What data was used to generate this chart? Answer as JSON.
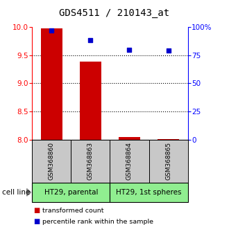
{
  "title": "GDS4511 / 210143_at",
  "samples": [
    "GSM368860",
    "GSM368863",
    "GSM368864",
    "GSM368865"
  ],
  "bar_values": [
    9.97,
    9.38,
    8.05,
    8.01
  ],
  "bar_base": 8.0,
  "percentile_values": [
    97,
    88,
    80,
    79
  ],
  "bar_color": "#cc0000",
  "dot_color": "#0000cc",
  "ylim_left": [
    8.0,
    10.0
  ],
  "ylim_right": [
    0,
    100
  ],
  "yticks_left": [
    8.0,
    8.5,
    9.0,
    9.5,
    10.0
  ],
  "yticks_right": [
    0,
    25,
    50,
    75,
    100
  ],
  "ytick_labels_right": [
    "0",
    "25",
    "50",
    "75",
    "100%"
  ],
  "cell_lines": [
    "HT29, parental",
    "HT29, 1st spheres"
  ],
  "cell_line_color": "#90ee90",
  "sample_box_color": "#c8c8c8",
  "bar_width": 0.55,
  "legend_red_label": "transformed count",
  "legend_blue_label": "percentile rank within the sample",
  "grid_yticks": [
    8.5,
    9.0,
    9.5
  ]
}
